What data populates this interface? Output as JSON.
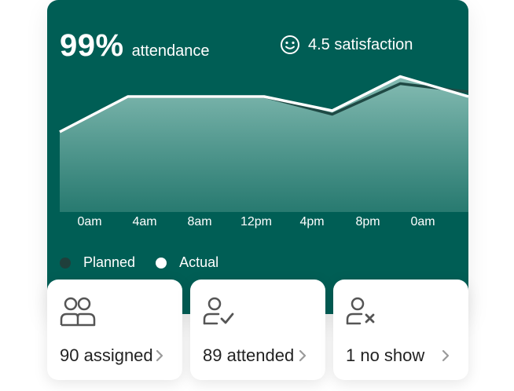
{
  "summary": {
    "attendance_value": "99%",
    "attendance_label": "attendance",
    "satisfaction_label": "4.5 satisfaction",
    "satisfaction_icon": "smiley-icon"
  },
  "chart_data": {
    "type": "area",
    "x": [
      "0am",
      "4am",
      "8am",
      "12pm",
      "4pm",
      "8pm",
      "0am"
    ],
    "series": [
      {
        "name": "Planned",
        "values": [
          68,
          98,
          98,
          98,
          83,
          109,
          102
        ]
      },
      {
        "name": "Actual",
        "values": [
          68,
          98,
          98,
          98,
          86,
          115,
          98
        ]
      }
    ],
    "ylim": [
      0,
      140
    ],
    "legend_position": "bottom-left",
    "colors": {
      "planned": "#1f4a45",
      "actual": "#ffffff",
      "background": "#005e55"
    }
  },
  "legend": {
    "planned_label": "Planned",
    "actual_label": "Actual"
  },
  "cards": [
    {
      "label": "90 assigned",
      "icon": "users-icon"
    },
    {
      "label": "89 attended",
      "icon": "user-check-icon"
    },
    {
      "label": "1 no show",
      "icon": "user-x-icon"
    }
  ]
}
